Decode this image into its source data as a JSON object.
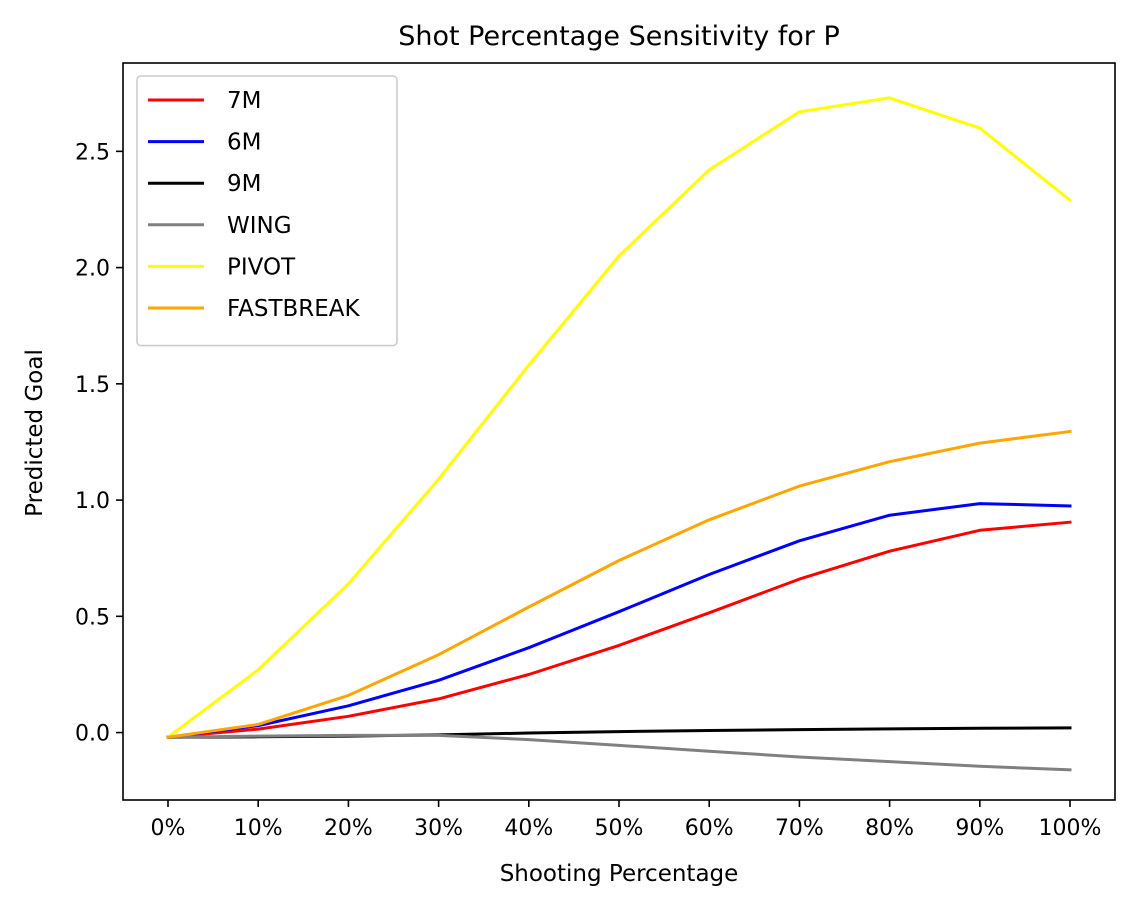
{
  "chart_data": {
    "type": "line",
    "title": "Shot Percentage Sensitivity for P",
    "xlabel": "Shooting Percentage",
    "ylabel": "Predicted Goal",
    "categories": [
      "0%",
      "10%",
      "20%",
      "30%",
      "40%",
      "50%",
      "60%",
      "70%",
      "80%",
      "90%",
      "100%"
    ],
    "y_ticks": [
      0.0,
      0.5,
      1.0,
      1.5,
      2.0,
      2.5
    ],
    "y_tick_labels": [
      "0.0",
      "0.5",
      "1.0",
      "1.5",
      "2.0",
      "2.5"
    ],
    "ylim": [
      -0.29,
      2.88
    ],
    "grid": false,
    "legend_position": "top-left",
    "series": [
      {
        "name": "7M",
        "color": "#ff0000",
        "values": [
          -0.02,
          0.015,
          0.07,
          0.145,
          0.25,
          0.375,
          0.515,
          0.66,
          0.78,
          0.87,
          0.905
        ]
      },
      {
        "name": "6M",
        "color": "#0000ff",
        "values": [
          -0.02,
          0.03,
          0.115,
          0.225,
          0.365,
          0.52,
          0.68,
          0.825,
          0.935,
          0.985,
          0.975
        ]
      },
      {
        "name": "9M",
        "color": "#000000",
        "values": [
          -0.02,
          -0.018,
          -0.015,
          -0.01,
          -0.002,
          0.004,
          0.009,
          0.013,
          0.016,
          0.019,
          0.02
        ]
      },
      {
        "name": "WING",
        "color": "#808080",
        "values": [
          -0.02,
          -0.015,
          -0.012,
          -0.012,
          -0.03,
          -0.055,
          -0.08,
          -0.105,
          -0.125,
          -0.145,
          -0.16
        ]
      },
      {
        "name": "PIVOT",
        "color": "#ffff00",
        "values": [
          -0.02,
          0.27,
          0.64,
          1.09,
          1.58,
          2.05,
          2.42,
          2.67,
          2.73,
          2.6,
          2.29
        ]
      },
      {
        "name": "FASTBREAK",
        "color": "#ffa500",
        "values": [
          -0.02,
          0.035,
          0.16,
          0.335,
          0.54,
          0.74,
          0.915,
          1.06,
          1.165,
          1.245,
          1.295
        ]
      }
    ]
  }
}
